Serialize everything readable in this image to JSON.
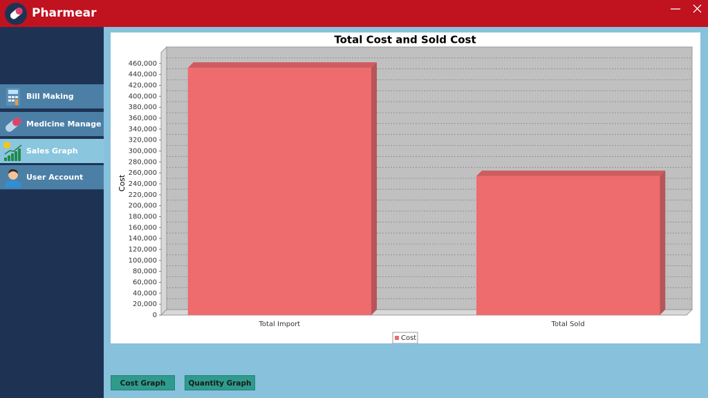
{
  "app": {
    "title": "Pharmear"
  },
  "menu": [
    "Bill Making",
    "Medicine Manage",
    "Sales Graph",
    "User Account"
  ],
  "buttons": [
    "Cost Graph",
    "Quantity Graph"
  ],
  "chart_data": {
    "type": "bar3d",
    "title": "Total Cost and Sold Cost",
    "y_label": "Cost",
    "categories": [
      "Total Import",
      "Total Sold"
    ],
    "series": [
      {
        "name": "Cost",
        "color": "#ee6b6e",
        "values": [
          452000,
          254000
        ]
      }
    ],
    "ylim": [
      0,
      480000
    ],
    "yticks": [
      0,
      {
        "value": 20000,
        "label": "20,000"
      },
      {
        "value": 40000,
        "label": "40,000"
      },
      {
        "value": 60000,
        "label": "60,000"
      },
      {
        "value": 80000,
        "label": "80,000"
      },
      {
        "value": 100000,
        "label": "100,000"
      },
      {
        "value": 120000,
        "label": "120,000"
      },
      {
        "value": 140000,
        "label": "140,000"
      },
      {
        "value": 160000,
        "label": "160,000"
      },
      {
        "value": 180000,
        "label": "180,000"
      },
      {
        "value": 200000,
        "label": "200,000"
      },
      {
        "value": 220000,
        "label": "220,000"
      },
      {
        "value": 240000,
        "label": "240,000"
      },
      {
        "value": 260000,
        "label": "260,000"
      },
      {
        "value": 280000,
        "label": "280,000"
      },
      {
        "value": 300000,
        "label": "300,000"
      },
      {
        "value": 320000,
        "label": "320,000"
      },
      {
        "value": 340000,
        "label": "340,000"
      },
      {
        "value": 360000,
        "label": "360,000"
      },
      {
        "value": 380000,
        "label": "380,000"
      },
      {
        "value": 400000,
        "label": "400,000"
      },
      {
        "value": 420000,
        "label": "420,000"
      },
      {
        "value": 440000,
        "label": "440,000"
      },
      {
        "value": 460000,
        "label": "460,000"
      }
    ],
    "grid": true
  }
}
